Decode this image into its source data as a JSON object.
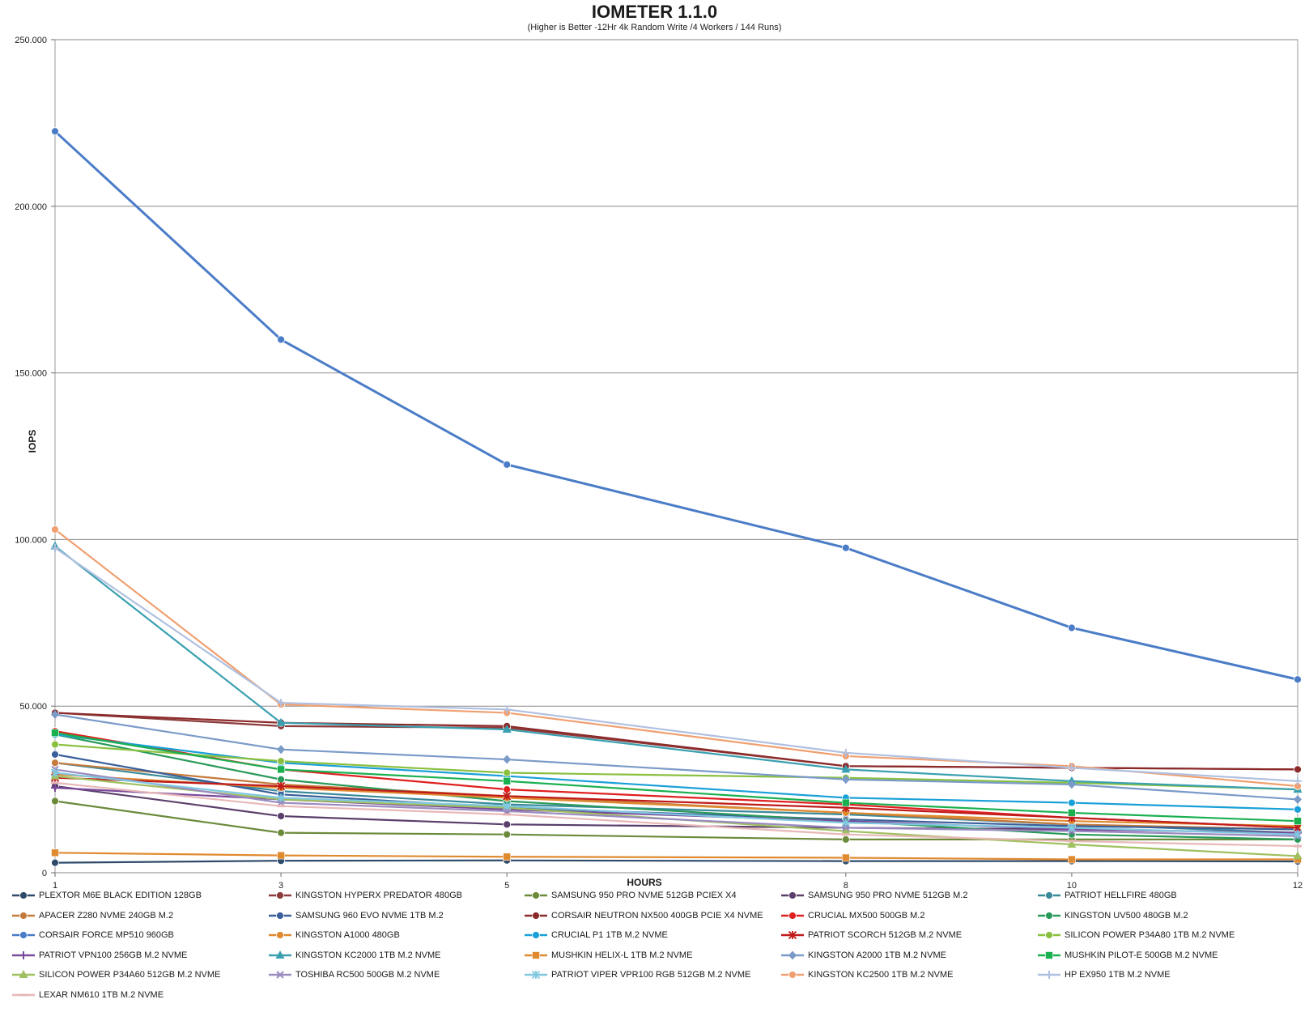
{
  "chart_data": {
    "type": "line",
    "title": "IOMETER 1.1.0",
    "subtitle": "(Higher is Better -12Hr 4k Random Write /4 Workers / 144 Runs)",
    "xlabel": "HOURS",
    "ylabel": "IOPS",
    "x": [
      1,
      3,
      5,
      8,
      10,
      12
    ],
    "x_tick_labels": [
      "1",
      "3",
      "5",
      "8",
      "10",
      "12"
    ],
    "ylim": [
      0,
      250000
    ],
    "y_ticks": [
      0,
      50000,
      100000,
      150000,
      200000,
      250000
    ],
    "y_tick_labels": [
      "0",
      "50.000",
      "100.000",
      "150.000",
      "200.000",
      "250.000"
    ],
    "grid": true,
    "legend_position": "bottom",
    "series": [
      {
        "name": "PLEXTOR M6E BLACK EDITION 128GB",
        "color": "#2e4a6b",
        "marker": "circle",
        "values": [
          3000,
          3600,
          3700,
          3500,
          3500,
          3400
        ]
      },
      {
        "name": "KINGSTON HYPERX PREDATOR 480GB",
        "color": "#8c3a3a",
        "marker": "circle",
        "values": [
          48000,
          44000,
          43500,
          32000,
          31500,
          31000
        ]
      },
      {
        "name": "SAMSUNG 950 PRO NVME 512GB PCIEX X4",
        "color": "#6b8a3a",
        "marker": "circle",
        "values": [
          21500,
          12000,
          11500,
          10000,
          10000,
          10000
        ]
      },
      {
        "name": "SAMSUNG 950 PRO NVME 512GB M.2",
        "color": "#5a3e6b",
        "marker": "circle",
        "values": [
          26000,
          17000,
          14500,
          13500,
          13000,
          12000
        ]
      },
      {
        "name": "PATRIOT HELLFIRE 480GB",
        "color": "#3a8a9a",
        "marker": "circle",
        "values": [
          33000,
          24500,
          20500,
          17500,
          14500,
          12000
        ]
      },
      {
        "name": "APACER Z280 NVME 240GB M.2",
        "color": "#c47a3a",
        "marker": "circle",
        "values": [
          33000,
          26500,
          23000,
          18000,
          14500,
          13000
        ]
      },
      {
        "name": "SAMSUNG 960 EVO NVME 1TB M.2",
        "color": "#3a5f9a",
        "marker": "circle",
        "values": [
          35500,
          23500,
          19500,
          16000,
          14000,
          13000
        ]
      },
      {
        "name": "CORSAIR NEUTRON NX500 400GB PCIE X4 NVME",
        "color": "#8c2a2a",
        "marker": "circle",
        "values": [
          48000,
          45000,
          44000,
          32000,
          31500,
          31000
        ]
      },
      {
        "name": "CRUCIAL MX500 500GB M.2",
        "color": "#e02020",
        "marker": "circle",
        "values": [
          42500,
          31000,
          25000,
          20500,
          16500,
          13500
        ]
      },
      {
        "name": "KINGSTON UV500 480GB M.2",
        "color": "#2a9a5a",
        "marker": "circle",
        "values": [
          41500,
          28000,
          21500,
          15500,
          11500,
          10000
        ]
      },
      {
        "name": "CORSAIR FORCE MP510 960GB",
        "color": "#4a7cc7",
        "marker": "circle",
        "values": [
          222500,
          160000,
          122500,
          97500,
          73500,
          58000
        ]
      },
      {
        "name": "KINGSTON A1000 480GB",
        "color": "#e08a30",
        "marker": "circle",
        "values": [
          29500,
          25500,
          22500,
          18000,
          15500,
          14000
        ]
      },
      {
        "name": "CRUCIAL P1 1TB M.2 NVME",
        "color": "#1aa0d8",
        "marker": "circle",
        "values": [
          41500,
          33000,
          29000,
          22500,
          21000,
          19000
        ]
      },
      {
        "name": "PATRIOT SCORCH 512GB M.2 NVME",
        "color": "#c01a1a",
        "marker": "star",
        "values": [
          28500,
          26000,
          23000,
          19500,
          16500,
          13500
        ]
      },
      {
        "name": "SILICON POWER P34A80 1TB M.2 NVME",
        "color": "#8ac040",
        "marker": "circle",
        "values": [
          38500,
          33500,
          30000,
          28500,
          27000,
          25000
        ]
      },
      {
        "name": "PATRIOT VPN100 256GB M.2 NVME",
        "color": "#7a4a9a",
        "marker": "plus",
        "values": [
          25500,
          22000,
          19000,
          15500,
          13000,
          12000
        ]
      },
      {
        "name": "KINGSTON KC2000 1TB M.2 NVME",
        "color": "#3aa0b0",
        "marker": "triangle",
        "values": [
          98000,
          45000,
          43000,
          31000,
          27500,
          25000
        ]
      },
      {
        "name": "MUSHKIN HELIX-L 1TB M.2 NVME",
        "color": "#e08a30",
        "marker": "square",
        "values": [
          6000,
          5200,
          4800,
          4500,
          4000,
          4000
        ]
      },
      {
        "name": "KINGSTON A2000 1TB M.2 NVME",
        "color": "#7a9ac8",
        "marker": "diamond",
        "values": [
          47500,
          37000,
          34000,
          28000,
          26500,
          22000
        ]
      },
      {
        "name": "MUSHKIN PILOT-E 500GB M.2 NVME",
        "color": "#1ab050",
        "marker": "square",
        "values": [
          42000,
          31000,
          27500,
          21000,
          18000,
          15500
        ]
      },
      {
        "name": "SILICON POWER P34A60 512GB M.2 NVME",
        "color": "#a0c060",
        "marker": "triangle",
        "values": [
          29000,
          22000,
          19500,
          12500,
          8500,
          5000
        ]
      },
      {
        "name": "TOSHIBA RC500 500GB M.2 NVME",
        "color": "#9a8ac0",
        "marker": "x",
        "values": [
          31000,
          21000,
          18500,
          13500,
          12500,
          11000
        ]
      },
      {
        "name": "PATRIOT VIPER VPR100 RGB 512GB M.2 NVME",
        "color": "#80c8e0",
        "marker": "asterisk",
        "values": [
          30000,
          22500,
          20000,
          15000,
          13500,
          11500
        ]
      },
      {
        "name": "KINGSTON KC2500 1TB M.2 NVME",
        "color": "#f0a070",
        "marker": "circle",
        "values": [
          103000,
          50500,
          48000,
          35000,
          32000,
          26000
        ]
      },
      {
        "name": "HP EX950 1TB M.2 NVME",
        "color": "#b0c0e0",
        "marker": "plus",
        "values": [
          97500,
          51000,
          49000,
          36000,
          31500,
          27500
        ]
      },
      {
        "name": "LEXAR NM610 1TB M.2 NVME",
        "color": "#e8b8b8",
        "marker": "dash",
        "values": [
          27000,
          20000,
          17500,
          11500,
          9500,
          8000
        ]
      }
    ]
  }
}
